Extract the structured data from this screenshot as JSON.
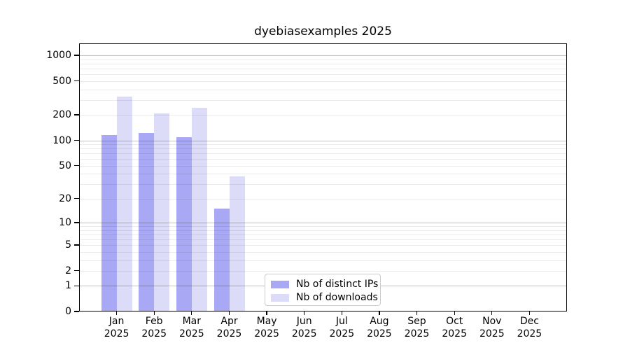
{
  "chart_data": {
    "type": "bar",
    "title": "dyebiasexamples 2025",
    "categories": [
      "Jan 2025",
      "Feb 2025",
      "Mar 2025",
      "Apr 2025",
      "May 2025",
      "Jun 2025",
      "Jul 2025",
      "Aug 2025",
      "Sep 2025",
      "Oct 2025",
      "Nov 2025",
      "Dec 2025"
    ],
    "series": [
      {
        "name": "Nb of distinct IPs",
        "color": "#a8a8f4",
        "values": [
          115,
          123,
          110,
          15,
          null,
          null,
          null,
          null,
          null,
          null,
          null,
          null
        ]
      },
      {
        "name": "Nb of downloads",
        "color": "#dcdcf8",
        "values": [
          330,
          210,
          240,
          37,
          null,
          null,
          null,
          null,
          null,
          null,
          null,
          null
        ]
      }
    ],
    "yscale": "log10(1+x)",
    "yticks": [
      0,
      1,
      2,
      5,
      10,
      20,
      50,
      100,
      200,
      500,
      1000
    ],
    "ylim": [
      0,
      1000
    ],
    "grid": true,
    "grid_colors": {
      "major": "#c2c2c2",
      "minor": "#ebebeb"
    },
    "axis_color": "#000000",
    "legend_position": "inside-bottom-center"
  }
}
